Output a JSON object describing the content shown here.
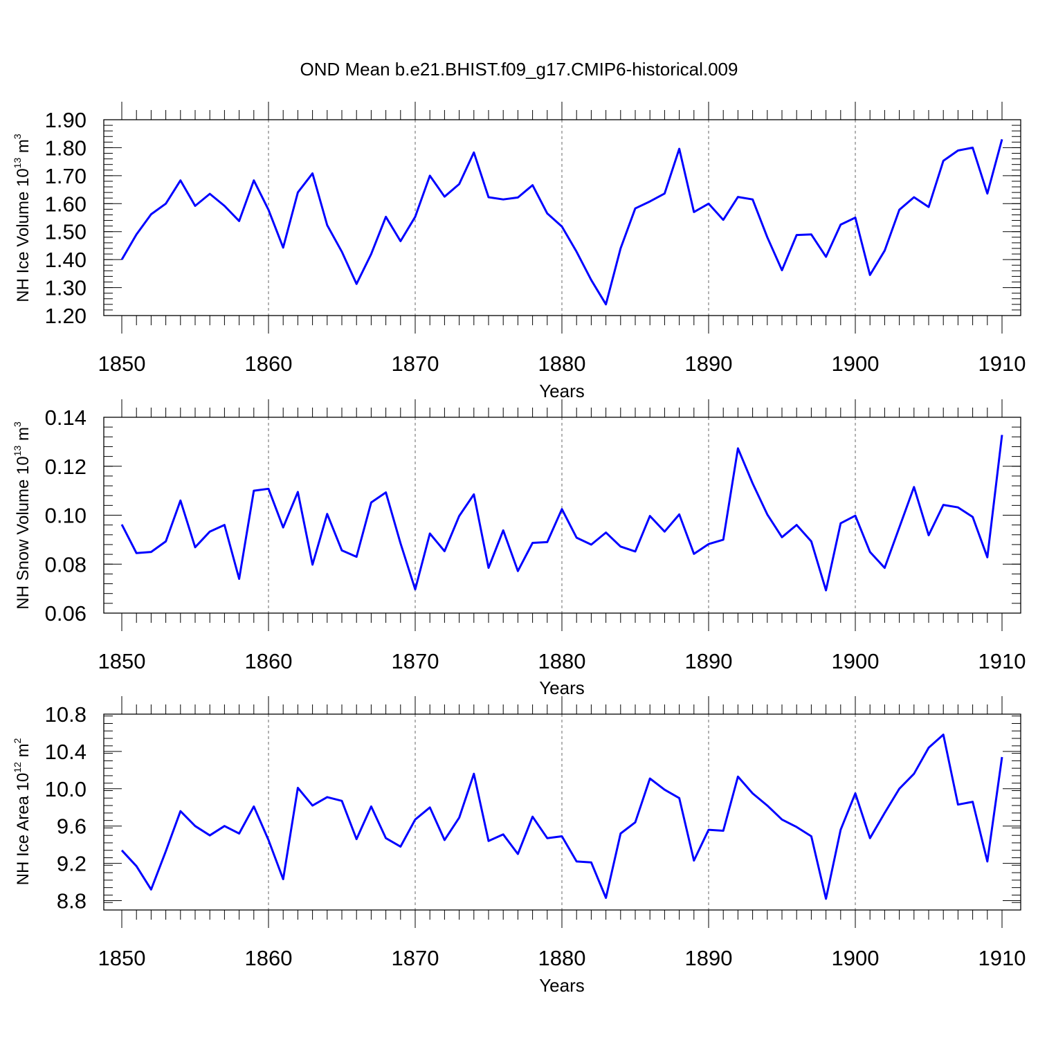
{
  "title": "OND Mean b.e21.BHIST.f09_g17.CMIP6-historical.009",
  "chart_data": [
    {
      "type": "line",
      "ylabel": "NH Ice Volume 10",
      "ylabel_exp": "13",
      "ylabel_unit": " m",
      "ylabel_unit_exp": "3",
      "xlabel": "Years",
      "xlim": [
        1850,
        1910
      ],
      "ylim": [
        1.2,
        1.9
      ],
      "yticks": [
        "1.20",
        "1.30",
        "1.40",
        "1.50",
        "1.60",
        "1.70",
        "1.80",
        "1.90"
      ],
      "xticks": [
        "1850",
        "1860",
        "1870",
        "1880",
        "1890",
        "1900",
        "1910"
      ],
      "grid": "vertical dashed at major x ticks",
      "line_color": "#0000ff",
      "x": [
        1850,
        1851,
        1852,
        1853,
        1854,
        1855,
        1856,
        1857,
        1858,
        1859,
        1860,
        1861,
        1862,
        1863,
        1864,
        1865,
        1866,
        1867,
        1868,
        1869,
        1870,
        1871,
        1872,
        1873,
        1874,
        1875,
        1876,
        1877,
        1878,
        1879,
        1880,
        1881,
        1882,
        1883,
        1884,
        1885,
        1886,
        1887,
        1888,
        1889,
        1890,
        1891,
        1892,
        1893,
        1894,
        1895,
        1896,
        1897,
        1898,
        1899,
        1900,
        1901,
        1902,
        1903,
        1904,
        1905,
        1906,
        1907,
        1908,
        1909,
        1910
      ],
      "values": [
        1.4,
        1.49,
        1.562,
        1.6,
        1.683,
        1.592,
        1.635,
        1.592,
        1.538,
        1.683,
        1.578,
        1.443,
        1.64,
        1.708,
        1.523,
        1.428,
        1.313,
        1.42,
        1.553,
        1.466,
        1.553,
        1.7,
        1.625,
        1.67,
        1.783,
        1.623,
        1.615,
        1.622,
        1.666,
        1.565,
        1.518,
        1.428,
        1.327,
        1.24,
        1.44,
        1.583,
        1.608,
        1.636,
        1.796,
        1.57,
        1.6,
        1.542,
        1.624,
        1.615,
        1.48,
        1.362,
        1.488,
        1.49,
        1.41,
        1.525,
        1.55,
        1.345,
        1.432,
        1.578,
        1.623,
        1.588,
        1.753,
        1.79,
        1.8,
        1.636,
        1.83
      ]
    },
    {
      "type": "line",
      "ylabel": "NH Snow Volume 10",
      "ylabel_exp": "13",
      "ylabel_unit": " m",
      "ylabel_unit_exp": "3",
      "xlabel": "Years",
      "xlim": [
        1850,
        1910
      ],
      "ylim": [
        0.06,
        0.14
      ],
      "yticks": [
        "0.06",
        "0.08",
        "0.10",
        "0.12",
        "0.14"
      ],
      "xticks": [
        "1850",
        "1860",
        "1870",
        "1880",
        "1890",
        "1900",
        "1910"
      ],
      "grid": "vertical dashed at major x ticks",
      "line_color": "#0000ff",
      "x": [
        1850,
        1851,
        1852,
        1853,
        1854,
        1855,
        1856,
        1857,
        1858,
        1859,
        1860,
        1861,
        1862,
        1863,
        1864,
        1865,
        1866,
        1867,
        1868,
        1869,
        1870,
        1871,
        1872,
        1873,
        1874,
        1875,
        1876,
        1877,
        1878,
        1879,
        1880,
        1881,
        1882,
        1883,
        1884,
        1885,
        1886,
        1887,
        1888,
        1889,
        1890,
        1891,
        1892,
        1893,
        1894,
        1895,
        1896,
        1897,
        1898,
        1899,
        1900,
        1901,
        1902,
        1903,
        1904,
        1905,
        1906,
        1907,
        1908,
        1909,
        1910
      ],
      "values": [
        0.0962,
        0.0845,
        0.085,
        0.0893,
        0.106,
        0.0869,
        0.0933,
        0.096,
        0.074,
        0.11,
        0.1108,
        0.095,
        0.1095,
        0.0798,
        0.1005,
        0.0856,
        0.083,
        0.1052,
        0.1093,
        0.0885,
        0.0697,
        0.0925,
        0.0853,
        0.0997,
        0.1085,
        0.0785,
        0.0938,
        0.0772,
        0.0887,
        0.089,
        0.1025,
        0.0908,
        0.088,
        0.0929,
        0.0872,
        0.0852,
        0.0997,
        0.0933,
        0.1003,
        0.0842,
        0.0882,
        0.09,
        0.1273,
        0.113,
        0.1003,
        0.091,
        0.096,
        0.0893,
        0.0693,
        0.0967,
        0.0998,
        0.085,
        0.0785,
        0.095,
        0.1115,
        0.0918,
        0.1042,
        0.1032,
        0.0993,
        0.0828,
        0.1328
      ]
    },
    {
      "type": "line",
      "ylabel": "NH Ice Area 10",
      "ylabel_exp": "12",
      "ylabel_unit": " m",
      "ylabel_unit_exp": "2",
      "xlabel": "Years",
      "xlim": [
        1850,
        1910
      ],
      "ylim": [
        8.7,
        10.8
      ],
      "yticks": [
        "8.8",
        "9.2",
        "9.6",
        "10.0",
        "10.4",
        "10.8"
      ],
      "ytick_values": [
        8.8,
        9.2,
        9.6,
        10.0,
        10.4,
        10.8
      ],
      "xticks": [
        "1850",
        "1860",
        "1870",
        "1880",
        "1890",
        "1900",
        "1910"
      ],
      "grid": "vertical dashed at major x ticks",
      "line_color": "#0000ff",
      "x": [
        1850,
        1851,
        1852,
        1853,
        1854,
        1855,
        1856,
        1857,
        1858,
        1859,
        1860,
        1861,
        1862,
        1863,
        1864,
        1865,
        1866,
        1867,
        1868,
        1869,
        1870,
        1871,
        1872,
        1873,
        1874,
        1875,
        1876,
        1877,
        1878,
        1879,
        1880,
        1881,
        1882,
        1883,
        1884,
        1885,
        1886,
        1887,
        1888,
        1889,
        1890,
        1891,
        1892,
        1893,
        1894,
        1895,
        1896,
        1897,
        1898,
        1899,
        1900,
        1901,
        1902,
        1903,
        1904,
        1905,
        1906,
        1907,
        1908,
        1909,
        1910
      ],
      "values": [
        9.34,
        9.17,
        8.92,
        9.33,
        9.76,
        9.6,
        9.5,
        9.6,
        9.52,
        9.81,
        9.45,
        9.03,
        10.01,
        9.82,
        9.91,
        9.87,
        9.46,
        9.81,
        9.47,
        9.38,
        9.67,
        9.8,
        9.45,
        9.69,
        10.16,
        9.44,
        9.51,
        9.3,
        9.7,
        9.47,
        9.49,
        9.22,
        9.21,
        8.83,
        9.52,
        9.64,
        10.11,
        9.99,
        9.9,
        9.23,
        9.56,
        9.55,
        10.13,
        9.95,
        9.82,
        9.67,
        9.59,
        9.49,
        8.82,
        9.56,
        9.95,
        9.47,
        9.74,
        10.0,
        10.16,
        10.44,
        10.58,
        9.83,
        9.86,
        9.22,
        10.34
      ]
    }
  ]
}
